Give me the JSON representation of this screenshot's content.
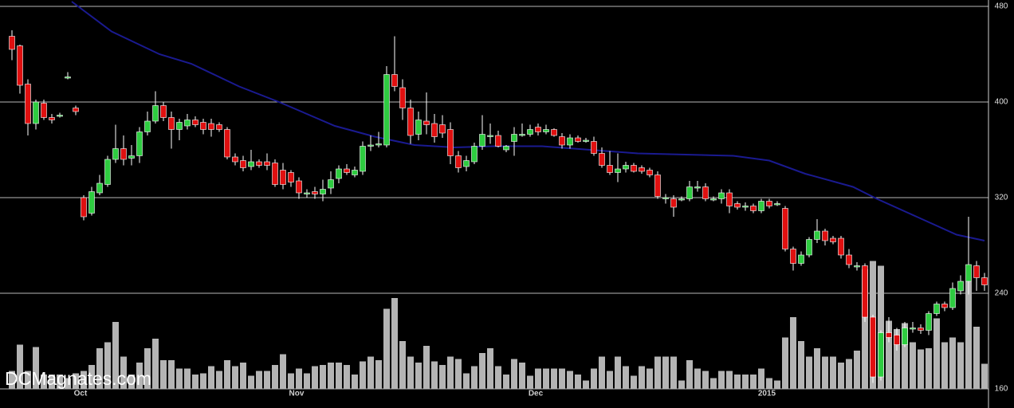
{
  "chart_data": {
    "type": "candlestick",
    "watermark": "DCMagnates.com",
    "up_color": "#2ecc40",
    "down_color": "#e01010",
    "volume_color": "#b4b4b4",
    "ma_color": "#1a1a90",
    "grid": true,
    "ylim": [
      160,
      480
    ],
    "yticks": [
      160,
      240,
      320,
      400,
      480
    ],
    "y2lim": [
      0,
      320
    ],
    "xlim": [
      0,
      122
    ],
    "xticks": [
      {
        "value": 8.6,
        "label": "Oct"
      },
      {
        "value": 35.7,
        "label": "Nov"
      },
      {
        "value": 65.7,
        "label": "Dec"
      },
      {
        "value": 94.7,
        "label": "2015"
      }
    ],
    "open": [
      455,
      447,
      415,
      382,
      399,
      387,
      389,
      421,
      395,
      320,
      307,
      324,
      331,
      352,
      361,
      353,
      355,
      375,
      384,
      397,
      387,
      377,
      380,
      385,
      383,
      382,
      381,
      377,
      354,
      351,
      346,
      350,
      350,
      349,
      343,
      341,
      334,
      324,
      325,
      323,
      328,
      336,
      344,
      339,
      342,
      364,
      365,
      364,
      423,
      412,
      395,
      373,
      384,
      382,
      381,
      377,
      355,
      346,
      350,
      363,
      372,
      372,
      360,
      367,
      373,
      373,
      379,
      375,
      377,
      371,
      364,
      370,
      368,
      367,
      357,
      347,
      341,
      344,
      347,
      345,
      343,
      339,
      320,
      319,
      319,
      319,
      329,
      329,
      319,
      319,
      324,
      315,
      313,
      313,
      309,
      317,
      315,
      311,
      277,
      265,
      272,
      285,
      292,
      286,
      286,
      272,
      263,
      263,
      220,
      170,
      207,
      205,
      197,
      211,
      211,
      209,
      223,
      231,
      228,
      242,
      250,
      263,
      253
    ],
    "high": [
      460,
      448,
      419,
      402,
      402,
      390,
      391,
      425,
      397,
      322,
      329,
      339,
      355,
      381,
      372,
      364,
      379,
      392,
      409,
      400,
      392,
      386,
      390,
      388,
      386,
      386,
      383,
      379,
      357,
      355,
      360,
      352,
      357,
      352,
      349,
      343,
      337,
      327,
      329,
      335,
      342,
      347,
      348,
      346,
      367,
      372,
      375,
      430,
      455,
      419,
      402,
      392,
      408,
      390,
      389,
      383,
      359,
      355,
      366,
      389,
      382,
      376,
      364,
      379,
      382,
      381,
      382,
      381,
      378,
      374,
      373,
      372,
      370,
      371,
      362,
      359,
      357,
      350,
      349,
      347,
      345,
      342,
      323,
      322,
      321,
      334,
      334,
      332,
      321,
      327,
      327,
      317,
      316,
      315,
      319,
      319,
      317,
      313,
      279,
      275,
      287,
      302,
      294,
      288,
      288,
      277,
      266,
      265,
      222,
      209,
      220,
      211,
      216,
      216,
      214,
      225,
      233,
      233,
      249,
      255,
      304,
      267,
      257
    ],
    "low": [
      435,
      407,
      372,
      377,
      385,
      382,
      387,
      419,
      389,
      301,
      305,
      322,
      329,
      349,
      347,
      347,
      349,
      372,
      382,
      384,
      361,
      368,
      377,
      379,
      373,
      371,
      375,
      352,
      347,
      342,
      343,
      345,
      343,
      329,
      327,
      329,
      319,
      320,
      319,
      317,
      323,
      332,
      339,
      337,
      339,
      359,
      362,
      362,
      409,
      385,
      365,
      368,
      373,
      366,
      370,
      348,
      341,
      342,
      348,
      360,
      365,
      362,
      358,
      355,
      371,
      371,
      372,
      373,
      371,
      361,
      361,
      366,
      366,
      355,
      345,
      339,
      333,
      341,
      341,
      340,
      337,
      319,
      315,
      304,
      317,
      317,
      325,
      317,
      317,
      315,
      307,
      310,
      309,
      307,
      307,
      311,
      313,
      275,
      259,
      263,
      270,
      282,
      280,
      281,
      269,
      261,
      259,
      216,
      165,
      167,
      199,
      192,
      195,
      207,
      206,
      205,
      221,
      225,
      226,
      239,
      239,
      242,
      242
    ],
    "close": [
      444,
      414,
      382,
      400,
      387,
      385,
      389,
      421,
      392,
      304,
      325,
      332,
      352,
      361,
      352,
      355,
      375,
      384,
      397,
      387,
      377,
      383,
      385,
      381,
      377,
      377,
      377,
      354,
      350,
      345,
      350,
      347,
      347,
      331,
      331,
      333,
      324,
      324,
      323,
      327,
      335,
      344,
      341,
      343,
      363,
      364,
      365,
      423,
      413,
      395,
      372,
      385,
      381,
      371,
      374,
      355,
      345,
      351,
      363,
      373,
      372,
      363,
      363,
      373,
      373,
      377,
      375,
      377,
      372,
      364,
      370,
      367,
      368,
      357,
      347,
      341,
      344,
      347,
      342,
      342,
      339,
      321,
      320,
      312,
      319,
      329,
      329,
      319,
      319,
      324,
      313,
      312,
      313,
      309,
      317,
      313,
      315,
      277,
      265,
      272,
      285,
      292,
      284,
      283,
      272,
      264,
      263,
      220,
      170,
      207,
      203,
      197,
      211,
      211,
      209,
      223,
      231,
      228,
      244,
      250,
      264,
      253,
      247
    ],
    "volume": [
      15,
      37,
      15,
      35,
      12,
      12,
      12,
      9,
      13,
      15,
      20,
      34,
      39,
      56,
      27,
      12,
      22,
      34,
      42,
      24,
      24,
      17,
      17,
      12,
      13,
      19,
      15,
      24,
      19,
      22,
      11,
      15,
      15,
      20,
      29,
      13,
      17,
      13,
      19,
      20,
      22,
      22,
      20,
      12,
      23,
      27,
      24,
      67,
      76,
      40,
      27,
      22,
      36,
      23,
      20,
      27,
      25,
      13,
      19,
      30,
      34,
      19,
      12,
      25,
      22,
      11,
      17,
      17,
      17,
      17,
      15,
      12,
      7,
      17,
      27,
      15,
      27,
      19,
      11,
      19,
      17,
      27,
      27,
      27,
      7,
      24,
      17,
      15,
      9,
      15,
      15,
      12,
      12,
      12,
      17,
      9,
      7,
      43,
      60,
      40,
      27,
      34,
      27,
      27,
      22,
      25,
      32,
      100,
      107,
      103,
      57,
      50,
      55,
      39,
      33,
      34,
      59,
      39,
      43,
      39,
      90,
      52,
      21
    ],
    "ma": {
      "x": [
        7.5,
        12.5,
        18.5,
        22.5,
        28.5,
        33.5,
        40.5,
        45.5,
        50.5,
        55.5,
        60.5,
        66.5,
        72.5,
        78.5,
        84.5,
        90.5,
        95,
        99.5,
        105.5,
        108.5,
        113.5,
        118.5,
        122
      ],
      "values": [
        484,
        459,
        440,
        432,
        413,
        400,
        380,
        371,
        364,
        362,
        363,
        363,
        360,
        357,
        356,
        355,
        351,
        340,
        329,
        319,
        304,
        289,
        284
      ]
    }
  }
}
